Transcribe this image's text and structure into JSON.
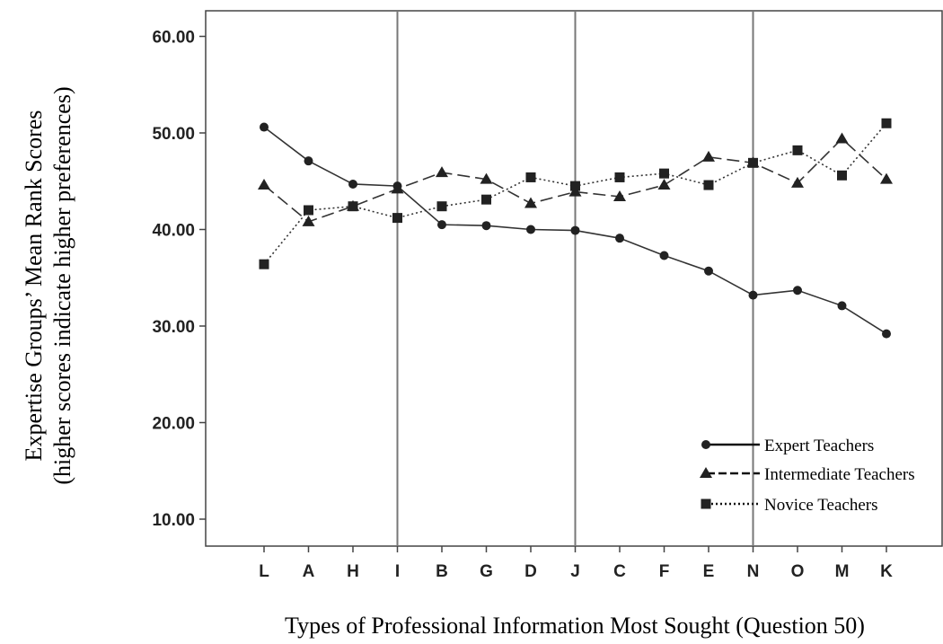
{
  "chart_data": {
    "type": "line",
    "title": "",
    "xlabel": "Types of Professional Information Most Sought (Question 50)",
    "ylabel_line1": "Expertise Groups’ Mean Rank Scores",
    "ylabel_line2": "(higher scores indicate higher preferences)",
    "categories": [
      "L",
      "A",
      "H",
      "I",
      "B",
      "G",
      "D",
      "J",
      "C",
      "F",
      "E",
      "N",
      "O",
      "M",
      "K"
    ],
    "ylim": [
      8,
      63
    ],
    "yticks": [
      "10.00",
      "20.00",
      "30.00",
      "40.00",
      "50.00",
      "60.00"
    ],
    "ytick_values": [
      10,
      20,
      30,
      40,
      50,
      60
    ],
    "vertical_reference_lines_at": [
      "I",
      "J",
      "N"
    ],
    "grid": false,
    "legend_position": "bottom-right",
    "series": [
      {
        "name": "Expert Teachers",
        "marker": "circle",
        "line_style": "solid",
        "values": [
          50.6,
          47.1,
          44.7,
          44.5,
          40.5,
          40.4,
          40.0,
          39.9,
          39.1,
          37.3,
          35.7,
          33.2,
          33.7,
          32.1,
          29.2
        ]
      },
      {
        "name": "Intermediate Teachers",
        "marker": "triangle",
        "line_style": "dashed",
        "values": [
          44.6,
          40.8,
          42.4,
          44.2,
          45.9,
          45.2,
          42.7,
          43.9,
          43.4,
          44.6,
          47.5,
          46.9,
          44.8,
          49.4,
          45.2
        ]
      },
      {
        "name": "Novice Teachers",
        "marker": "square",
        "line_style": "dotted",
        "values": [
          36.4,
          42.0,
          42.4,
          41.2,
          42.4,
          43.1,
          45.4,
          44.5,
          45.4,
          45.8,
          44.6,
          46.9,
          48.2,
          45.6,
          51.0
        ]
      }
    ]
  }
}
